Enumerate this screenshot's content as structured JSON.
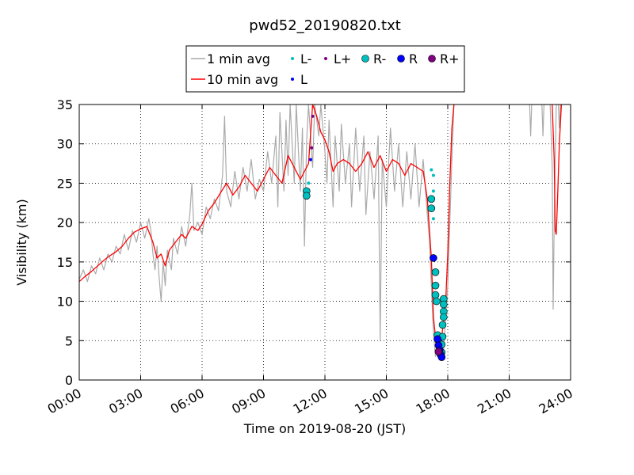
{
  "chart_data": {
    "type": "line",
    "title": "pwd52_20190820.txt",
    "xlabel": "Time on 2019-08-20 (JST)",
    "ylabel": "Visibility (km)",
    "xlim_hours": [
      0,
      24
    ],
    "ylim": [
      0,
      35
    ],
    "x_ticks": [
      {
        "hour": 0,
        "label": "00:00"
      },
      {
        "hour": 3,
        "label": "03:00"
      },
      {
        "hour": 6,
        "label": "06:00"
      },
      {
        "hour": 9,
        "label": "09:00"
      },
      {
        "hour": 12,
        "label": "12:00"
      },
      {
        "hour": 15,
        "label": "15:00"
      },
      {
        "hour": 18,
        "label": "18:00"
      },
      {
        "hour": 21,
        "label": "21:00"
      },
      {
        "hour": 24,
        "label": "24:00"
      }
    ],
    "y_ticks": [
      0,
      5,
      10,
      15,
      20,
      25,
      30,
      35
    ],
    "grid": true,
    "legend_position": "top-center",
    "legend": [
      {
        "label": "1 min avg",
        "kind": "line",
        "color": "#aaaaaa"
      },
      {
        "label": "10 min avg",
        "kind": "line",
        "color": "#ff0000"
      },
      {
        "label": "L-",
        "kind": "small-dot",
        "color": "#00bfbf"
      },
      {
        "label": "L",
        "kind": "small-dot",
        "color": "#0000ff"
      },
      {
        "label": "L+",
        "kind": "small-dot",
        "color": "#800080"
      },
      {
        "label": "R-",
        "kind": "big-dot",
        "color": "#00bfbf"
      },
      {
        "label": "R",
        "kind": "big-dot",
        "color": "#0000ff"
      },
      {
        "label": "R+",
        "kind": "big-dot",
        "color": "#800080"
      }
    ],
    "series": [
      {
        "name": "10 min avg",
        "color": "#ff0000",
        "points": [
          [
            0.0,
            12.5
          ],
          [
            0.3,
            13.2
          ],
          [
            0.6,
            13.8
          ],
          [
            0.9,
            14.5
          ],
          [
            1.2,
            15.2
          ],
          [
            1.5,
            15.8
          ],
          [
            1.8,
            16.3
          ],
          [
            2.1,
            17.0
          ],
          [
            2.4,
            18.0
          ],
          [
            2.7,
            18.8
          ],
          [
            3.0,
            19.2
          ],
          [
            3.3,
            19.5
          ],
          [
            3.6,
            17.5
          ],
          [
            3.8,
            15.5
          ],
          [
            4.0,
            16.0
          ],
          [
            4.2,
            14.5
          ],
          [
            4.4,
            16.5
          ],
          [
            4.7,
            17.5
          ],
          [
            5.0,
            18.5
          ],
          [
            5.2,
            18.0
          ],
          [
            5.5,
            19.5
          ],
          [
            5.8,
            19.0
          ],
          [
            6.0,
            19.8
          ],
          [
            6.3,
            21.5
          ],
          [
            6.6,
            22.5
          ],
          [
            6.9,
            23.8
          ],
          [
            7.2,
            25.0
          ],
          [
            7.5,
            23.5
          ],
          [
            7.8,
            24.5
          ],
          [
            8.1,
            26.0
          ],
          [
            8.4,
            25.0
          ],
          [
            8.7,
            24.0
          ],
          [
            9.0,
            25.5
          ],
          [
            9.3,
            27.0
          ],
          [
            9.6,
            26.0
          ],
          [
            9.9,
            25.0
          ],
          [
            10.2,
            28.5
          ],
          [
            10.5,
            27.0
          ],
          [
            10.8,
            25.5
          ],
          [
            11.0,
            26.5
          ],
          [
            11.2,
            27.5
          ],
          [
            11.4,
            35
          ],
          [
            11.6,
            33.5
          ],
          [
            11.8,
            31.5
          ],
          [
            12.0,
            30.5
          ],
          [
            12.2,
            29.0
          ],
          [
            12.4,
            26.5
          ],
          [
            12.6,
            27.5
          ],
          [
            12.9,
            28.0
          ],
          [
            13.2,
            27.5
          ],
          [
            13.5,
            26.5
          ],
          [
            13.8,
            27.5
          ],
          [
            14.1,
            29.0
          ],
          [
            14.4,
            27.0
          ],
          [
            14.7,
            28.5
          ],
          [
            15.0,
            26.5
          ],
          [
            15.3,
            28.0
          ],
          [
            15.6,
            27.5
          ],
          [
            15.9,
            26.0
          ],
          [
            16.2,
            27.5
          ],
          [
            16.5,
            27.0
          ],
          [
            16.8,
            26.5
          ],
          [
            17.0,
            23.0
          ],
          [
            17.2,
            15.5
          ],
          [
            17.3,
            8.0
          ],
          [
            17.4,
            5.5
          ],
          [
            17.5,
            5.0
          ],
          [
            17.6,
            4.5
          ],
          [
            17.7,
            5.5
          ],
          [
            17.8,
            7.5
          ],
          [
            17.9,
            10.0
          ],
          [
            18.0,
            16.0
          ],
          [
            18.1,
            25.0
          ],
          [
            18.2,
            32.0
          ],
          [
            18.3,
            35
          ]
        ]
      },
      {
        "name": "1 min avg",
        "color": "#aaaaaa",
        "points": [
          [
            0.0,
            12.8
          ],
          [
            0.2,
            14.0
          ],
          [
            0.4,
            12.5
          ],
          [
            0.6,
            14.5
          ],
          [
            0.8,
            13.5
          ],
          [
            1.0,
            15.5
          ],
          [
            1.2,
            14.0
          ],
          [
            1.4,
            16.0
          ],
          [
            1.6,
            15.0
          ],
          [
            1.8,
            17.0
          ],
          [
            2.0,
            16.0
          ],
          [
            2.2,
            18.5
          ],
          [
            2.4,
            16.5
          ],
          [
            2.6,
            19.0
          ],
          [
            2.8,
            17.5
          ],
          [
            3.0,
            20.0
          ],
          [
            3.2,
            18.0
          ],
          [
            3.4,
            20.5
          ],
          [
            3.5,
            19.0
          ],
          [
            3.6,
            16.0
          ],
          [
            3.7,
            14.0
          ],
          [
            3.8,
            17.0
          ],
          [
            3.9,
            13.0
          ],
          [
            4.0,
            10.0
          ],
          [
            4.1,
            15.0
          ],
          [
            4.2,
            12.0
          ],
          [
            4.3,
            16.5
          ],
          [
            4.5,
            14.0
          ],
          [
            4.6,
            18.0
          ],
          [
            4.8,
            16.0
          ],
          [
            5.0,
            19.5
          ],
          [
            5.2,
            17.0
          ],
          [
            5.4,
            21.0
          ],
          [
            5.5,
            25.0
          ],
          [
            5.6,
            19.0
          ],
          [
            5.8,
            20.0
          ],
          [
            6.0,
            18.5
          ],
          [
            6.2,
            22.0
          ],
          [
            6.4,
            20.5
          ],
          [
            6.6,
            23.0
          ],
          [
            6.8,
            21.5
          ],
          [
            7.0,
            26.0
          ],
          [
            7.1,
            33.5
          ],
          [
            7.2,
            24.0
          ],
          [
            7.4,
            22.0
          ],
          [
            7.6,
            26.5
          ],
          [
            7.8,
            23.0
          ],
          [
            8.0,
            27.0
          ],
          [
            8.2,
            24.0
          ],
          [
            8.4,
            28.0
          ],
          [
            8.6,
            23.0
          ],
          [
            8.8,
            25.5
          ],
          [
            9.0,
            24.0
          ],
          [
            9.2,
            29.0
          ],
          [
            9.4,
            25.0
          ],
          [
            9.6,
            31.0
          ],
          [
            9.7,
            22.0
          ],
          [
            9.8,
            34.0
          ],
          [
            10.0,
            24.0
          ],
          [
            10.1,
            33.0
          ],
          [
            10.2,
            26.0
          ],
          [
            10.3,
            35
          ],
          [
            10.5,
            25.0
          ],
          [
            10.6,
            35
          ],
          [
            10.8,
            24.0
          ],
          [
            10.9,
            32.0
          ],
          [
            11.0,
            17.0
          ],
          [
            11.1,
            30.0
          ],
          [
            11.2,
            35
          ],
          [
            11.4,
            27.0
          ],
          [
            11.5,
            35
          ],
          [
            11.7,
            31.0
          ],
          [
            11.8,
            35
          ],
          [
            12.0,
            29.0
          ],
          [
            12.1,
            25.0
          ],
          [
            12.2,
            33.0
          ],
          [
            12.4,
            22.0
          ],
          [
            12.5,
            31.0
          ],
          [
            12.7,
            24.0
          ],
          [
            12.8,
            32.5
          ],
          [
            13.0,
            25.0
          ],
          [
            13.2,
            30.0
          ],
          [
            13.3,
            22.0
          ],
          [
            13.5,
            32.0
          ],
          [
            13.7,
            24.0
          ],
          [
            13.9,
            31.0
          ],
          [
            14.0,
            21.0
          ],
          [
            14.2,
            29.0
          ],
          [
            14.4,
            23.0
          ],
          [
            14.6,
            31.0
          ],
          [
            14.7,
            5.0
          ],
          [
            14.8,
            28.0
          ],
          [
            15.0,
            22.0
          ],
          [
            15.2,
            32.0
          ],
          [
            15.4,
            24.0
          ],
          [
            15.6,
            30.0
          ],
          [
            15.8,
            22.0
          ],
          [
            16.0,
            29.0
          ],
          [
            16.2,
            23.0
          ],
          [
            16.4,
            30.0
          ],
          [
            16.6,
            22.0
          ],
          [
            16.8,
            28.0
          ],
          [
            17.0,
            21.0
          ],
          [
            17.1,
            18.0
          ],
          [
            17.2,
            12.0
          ],
          [
            17.3,
            6.0
          ],
          [
            17.4,
            3.0
          ],
          [
            17.5,
            4.0
          ],
          [
            17.6,
            3.0
          ],
          [
            17.7,
            5.0
          ],
          [
            17.8,
            4.0
          ],
          [
            17.9,
            8.0
          ],
          [
            18.0,
            12.0
          ],
          [
            18.1,
            20.0
          ],
          [
            18.2,
            28.0
          ],
          [
            18.3,
            35
          ]
        ]
      },
      {
        "name": "10 min avg (late)",
        "color": "#ff0000",
        "points": [
          [
            23.1,
            35
          ],
          [
            23.2,
            28.0
          ],
          [
            23.25,
            19.0
          ],
          [
            23.3,
            18.5
          ],
          [
            23.35,
            22.0
          ],
          [
            23.45,
            30.0
          ],
          [
            23.55,
            35
          ]
        ]
      },
      {
        "name": "1 min avg (late)",
        "color": "#aaaaaa",
        "points": [
          [
            22.0,
            35
          ],
          [
            22.05,
            31.0
          ],
          [
            22.1,
            35
          ],
          [
            22.6,
            35
          ],
          [
            22.65,
            31.0
          ],
          [
            22.7,
            35
          ],
          [
            23.0,
            35
          ],
          [
            23.1,
            27.0
          ],
          [
            23.15,
            9.0
          ],
          [
            23.2,
            20.0
          ],
          [
            23.3,
            35
          ],
          [
            23.4,
            35
          ],
          [
            23.45,
            32.0
          ],
          [
            23.5,
            35
          ]
        ]
      }
    ],
    "markers": {
      "L-": {
        "color": "#00bfbf",
        "points": [
          [
            11.2,
            25.0
          ],
          [
            17.2,
            26.7
          ],
          [
            17.3,
            26.0
          ],
          [
            17.3,
            24.0
          ],
          [
            17.3,
            20.5
          ]
        ]
      },
      "L": {
        "color": "#0000ff",
        "points": [
          [
            11.3,
            28.0
          ]
        ]
      },
      "L+": {
        "color": "#800080",
        "points": [
          [
            11.4,
            33.5
          ],
          [
            11.35,
            29.5
          ]
        ]
      },
      "R-": {
        "color": "#00bfbf",
        "points": [
          [
            11.1,
            24.0
          ],
          [
            11.1,
            23.4
          ],
          [
            17.2,
            23.0
          ],
          [
            17.2,
            21.8
          ],
          [
            17.4,
            13.7
          ],
          [
            17.4,
            12.0
          ],
          [
            17.4,
            10.8
          ],
          [
            17.45,
            10.0
          ],
          [
            17.5,
            5.7
          ],
          [
            17.55,
            5.0
          ],
          [
            17.6,
            4.5
          ],
          [
            17.8,
            10.3
          ],
          [
            17.8,
            9.6
          ],
          [
            17.8,
            8.7
          ],
          [
            17.8,
            8.0
          ],
          [
            17.75,
            7.0
          ],
          [
            17.75,
            5.5
          ],
          [
            17.7,
            4.5
          ],
          [
            17.7,
            3.5
          ]
        ]
      },
      "R": {
        "color": "#0000ff",
        "points": [
          [
            17.3,
            15.5
          ],
          [
            17.5,
            5.2
          ],
          [
            17.55,
            4.4
          ],
          [
            17.6,
            3.8
          ],
          [
            17.65,
            3.2
          ],
          [
            17.7,
            2.9
          ]
        ]
      },
      "R+": {
        "color": "#800080",
        "points": [
          [
            17.55,
            3.6
          ]
        ]
      }
    }
  }
}
